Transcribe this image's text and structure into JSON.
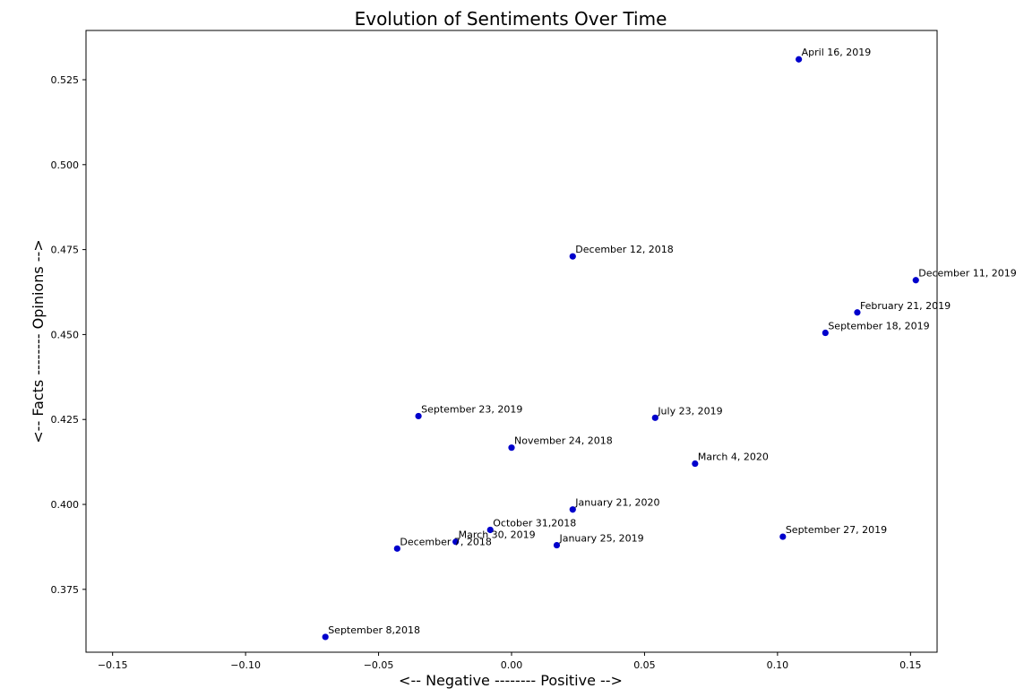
{
  "chart_data": {
    "type": "scatter",
    "title": "Evolution of Sentiments Over Time",
    "xlabel": "<-- Negative -------- Positive -->",
    "ylabel": "<-- Facts -------- Opinions -->",
    "xlim": [
      -0.16,
      0.16
    ],
    "ylim": [
      0.3565,
      0.5395
    ],
    "xticks": [
      -0.15,
      -0.1,
      -0.05,
      0.0,
      0.05,
      0.1,
      0.15
    ],
    "xtick_labels": [
      "−0.15",
      "−0.10",
      "−0.05",
      "0.00",
      "0.05",
      "0.10",
      "0.15"
    ],
    "yticks": [
      0.375,
      0.4,
      0.425,
      0.45,
      0.475,
      0.5,
      0.525
    ],
    "ytick_labels": [
      "0.375",
      "0.400",
      "0.425",
      "0.450",
      "0.475",
      "0.500",
      "0.525"
    ],
    "grid": false,
    "point_color": "#0000cc",
    "points": [
      {
        "label": "April 16, 2019",
        "x": 0.108,
        "y": 0.531
      },
      {
        "label": "December 12, 2018",
        "x": 0.023,
        "y": 0.473
      },
      {
        "label": "December 11, 2019",
        "x": 0.152,
        "y": 0.466
      },
      {
        "label": "February 21, 2019",
        "x": 0.13,
        "y": 0.4565
      },
      {
        "label": "September 18, 2019",
        "x": 0.118,
        "y": 0.4505
      },
      {
        "label": "September 23, 2019",
        "x": -0.035,
        "y": 0.426
      },
      {
        "label": "July 23, 2019",
        "x": 0.054,
        "y": 0.4255
      },
      {
        "label": "November 24, 2018",
        "x": 0.0,
        "y": 0.4167
      },
      {
        "label": "March 4, 2020",
        "x": 0.069,
        "y": 0.412
      },
      {
        "label": "January 21, 2020",
        "x": 0.023,
        "y": 0.3985
      },
      {
        "label": "October 31,2018",
        "x": -0.008,
        "y": 0.3925
      },
      {
        "label": "September 27, 2019",
        "x": 0.102,
        "y": 0.3905
      },
      {
        "label": "March 30, 2019",
        "x": -0.021,
        "y": 0.389
      },
      {
        "label": "January 25, 2019",
        "x": 0.017,
        "y": 0.388
      },
      {
        "label": "December 7, 2018",
        "x": -0.043,
        "y": 0.387
      },
      {
        "label": "September 8,2018",
        "x": -0.07,
        "y": 0.361
      }
    ]
  }
}
